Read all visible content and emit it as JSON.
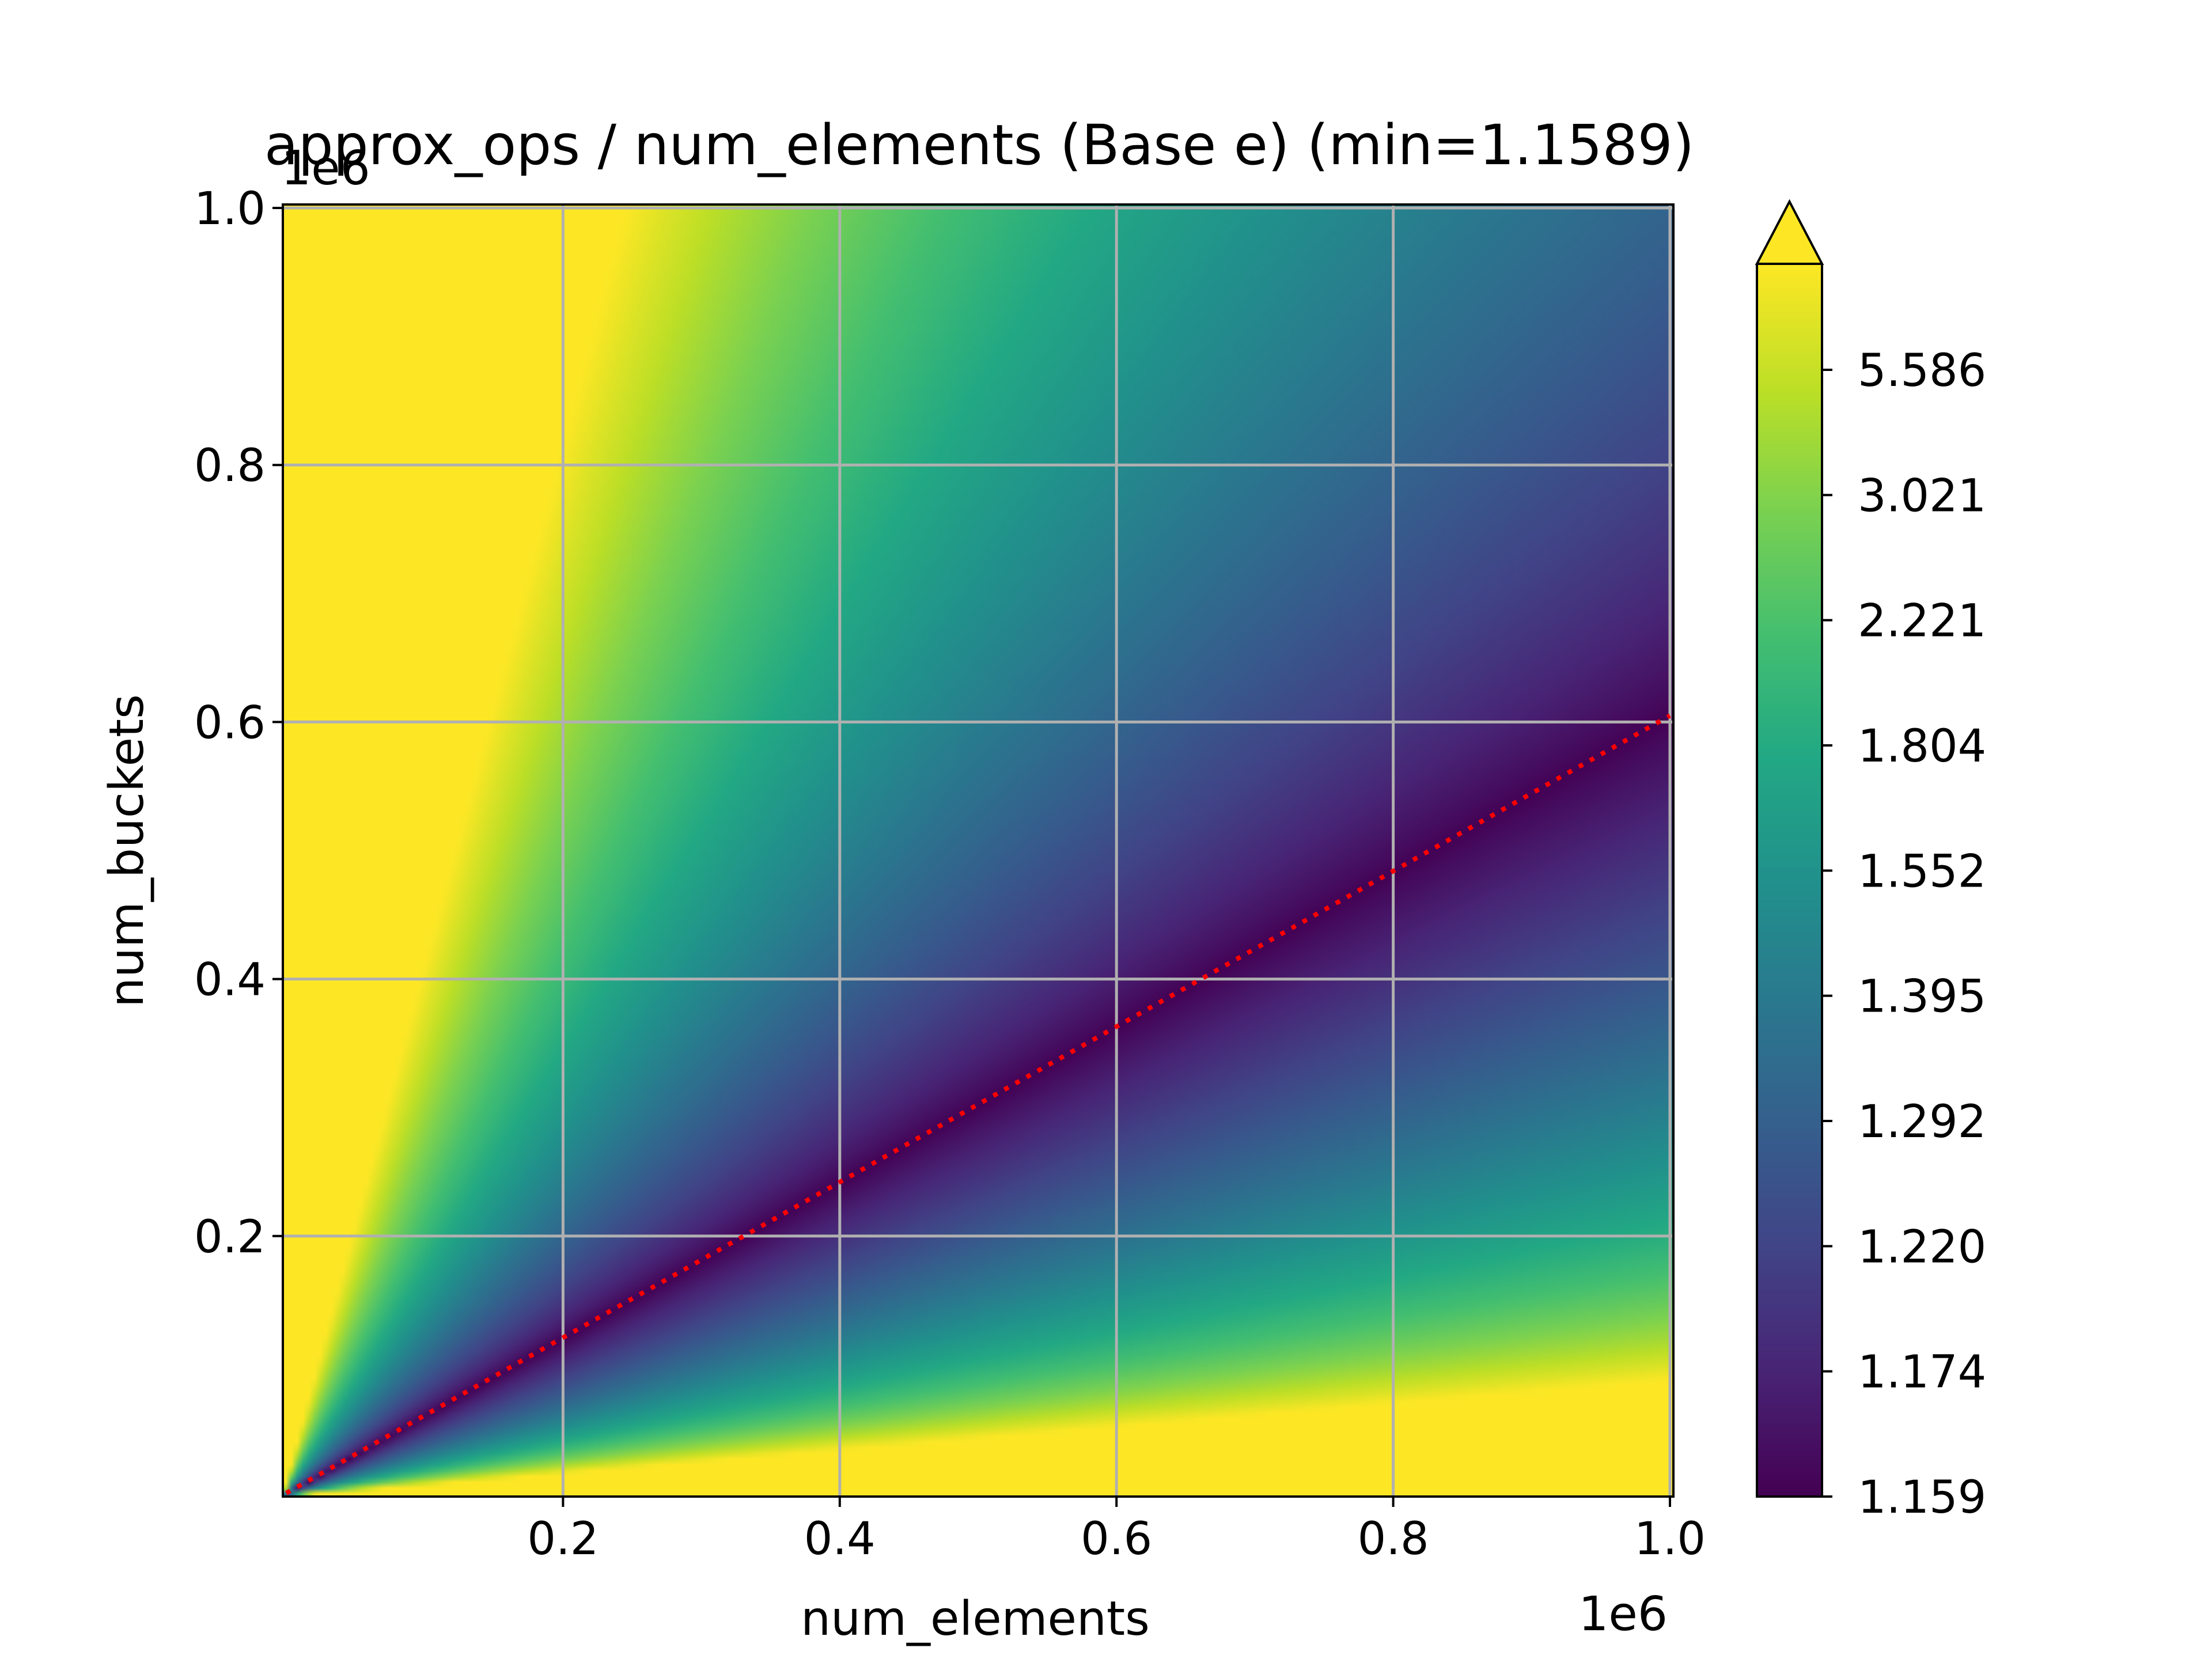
{
  "chart_data": {
    "type": "heatmap",
    "title": "approx_ops / num_elements (Base e) (min=1.1589)",
    "xlabel": "num_elements",
    "ylabel": "num_buckets",
    "x_offset_text": "1e6",
    "y_offset_text": "1e6",
    "xlim": [
      0,
      1000000
    ],
    "ylim": [
      0,
      1000000
    ],
    "xticks": [
      200000,
      400000,
      600000,
      800000,
      1000000
    ],
    "xtick_labels": [
      "0.2",
      "0.4",
      "0.6",
      "0.8",
      "1.0"
    ],
    "yticks": [
      200000,
      400000,
      600000,
      800000,
      1000000
    ],
    "ytick_labels": [
      "0.2",
      "0.4",
      "0.6",
      "0.8",
      "1.0"
    ],
    "grid": true,
    "colormap": "viridis",
    "colorbar": {
      "extend": "max",
      "tick_labels": [
        "1.159",
        "1.174",
        "1.220",
        "1.292",
        "1.395",
        "1.552",
        "1.804",
        "2.221",
        "3.021",
        "5.586"
      ]
    },
    "optimal_line": {
      "style": "dotted",
      "color": "#ff0000",
      "x": [
        0,
        1000000
      ],
      "y": [
        0,
        605000
      ]
    }
  }
}
